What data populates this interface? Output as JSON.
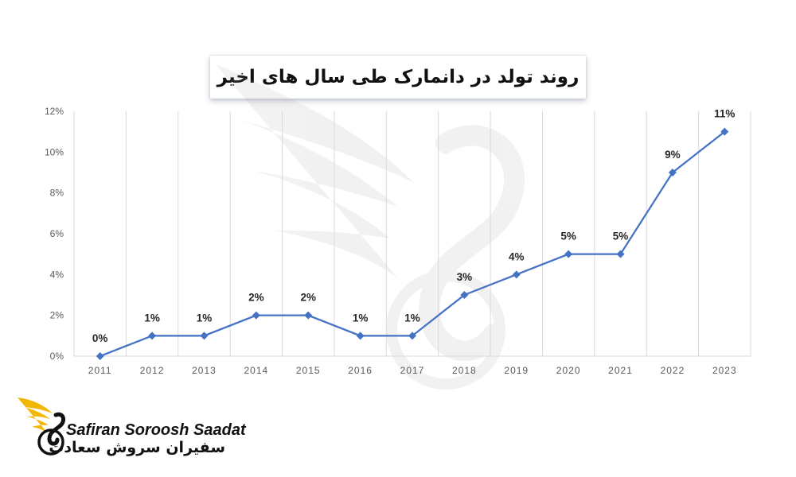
{
  "chart_data": {
    "type": "line",
    "title": "روند تولد در دانمارک طی سال های اخیر",
    "categories": [
      "2011",
      "2012",
      "2013",
      "2014",
      "2015",
      "2016",
      "2017",
      "2018",
      "2019",
      "2020",
      "2021",
      "2022",
      "2023"
    ],
    "values": [
      0,
      1,
      1,
      2,
      2,
      1,
      1,
      3,
      4,
      5,
      5,
      9,
      11
    ],
    "data_labels": [
      "0%",
      "1%",
      "1%",
      "2%",
      "2%",
      "1%",
      "1%",
      "3%",
      "4%",
      "5%",
      "5%",
      "9%",
      "11%"
    ],
    "ylim": [
      0,
      12
    ],
    "yticks": [
      0,
      2,
      4,
      6,
      8,
      10,
      12
    ],
    "ytick_labels": [
      "0%",
      "2%",
      "4%",
      "6%",
      "8%",
      "10%",
      "12%"
    ],
    "grid": "vertical",
    "legend": "none",
    "line_color": "#4472C4",
    "marker": "diamond"
  },
  "logo": {
    "name_en": "Safiran Soroosh Saadat",
    "name_fa": "سفیران سروش سعادت",
    "accent_color": "#F2B705"
  }
}
